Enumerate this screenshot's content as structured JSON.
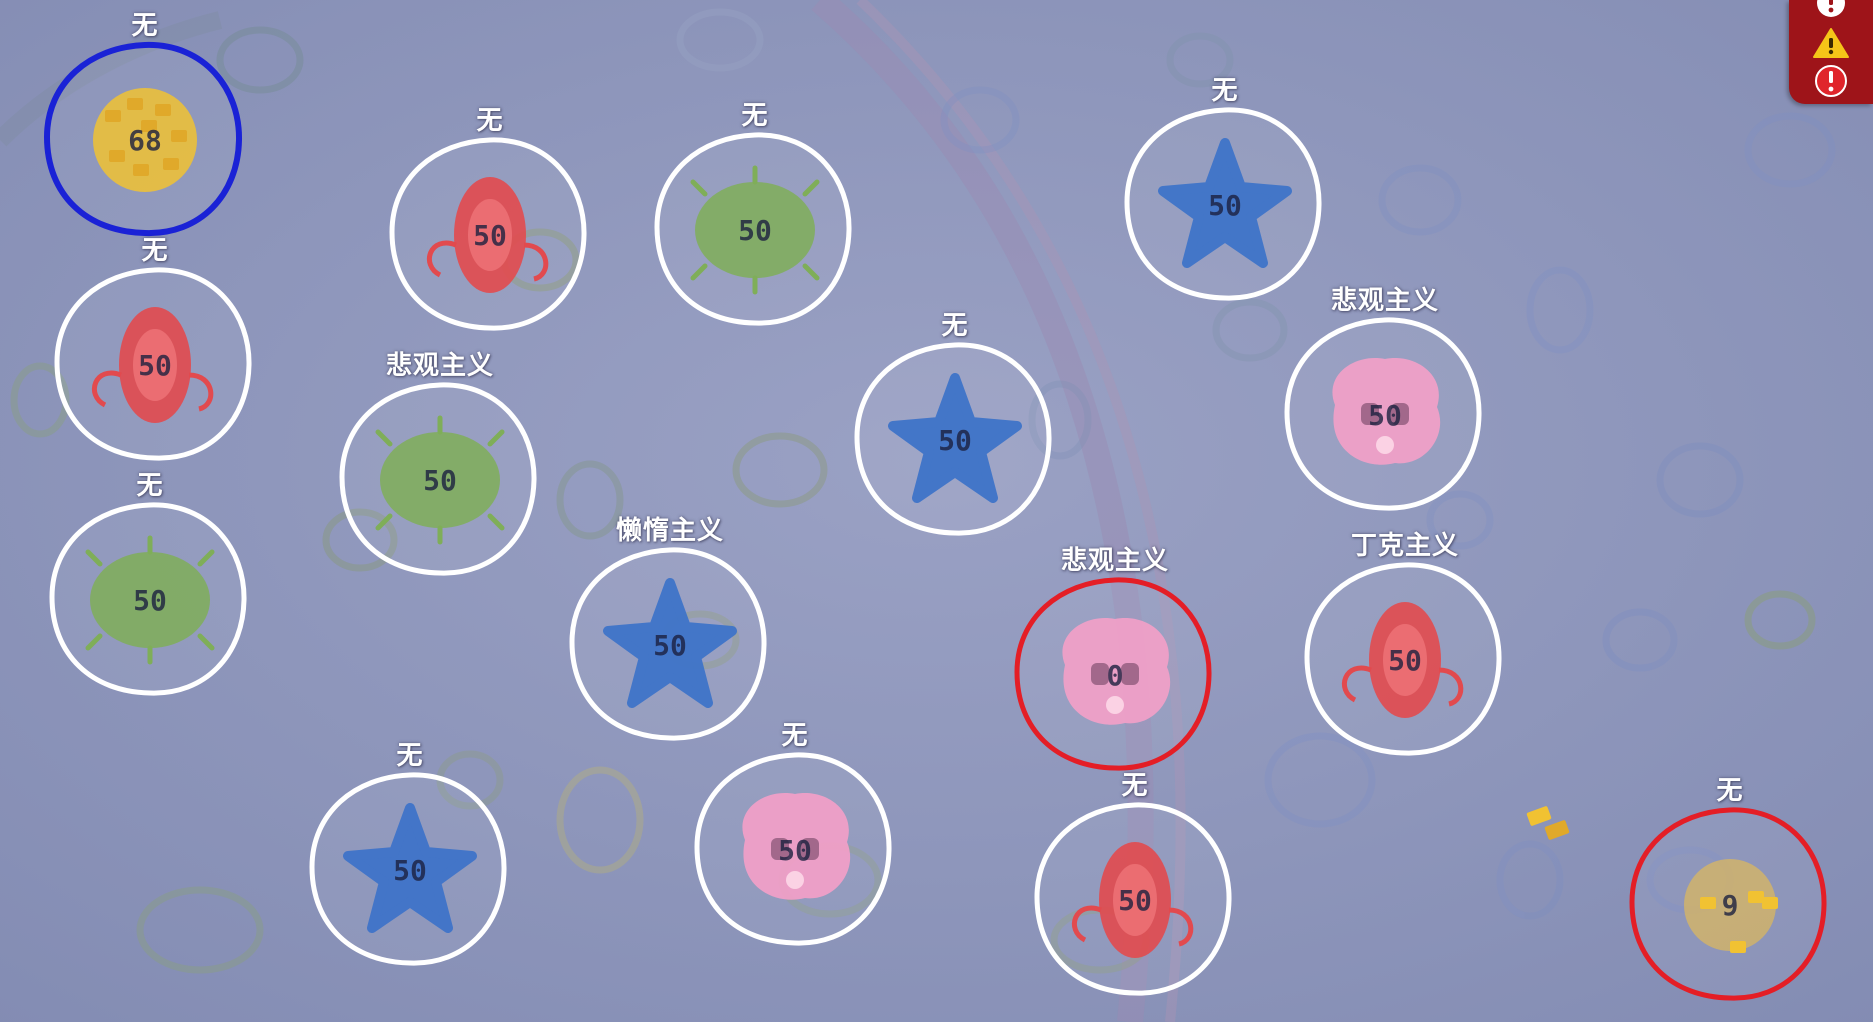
{
  "scene": {
    "background_color": "#8f97b9"
  },
  "cells": [
    {
      "label": "无",
      "count": "68",
      "species": "yellow-spiky",
      "ring": "blue",
      "selected": true
    },
    {
      "label": "无",
      "count": "50",
      "species": "red-fuzzy",
      "ring": "white"
    },
    {
      "label": "无",
      "count": "50",
      "species": "green-blob",
      "ring": "white"
    },
    {
      "label": "无",
      "count": "50",
      "species": "blue-star",
      "ring": "white"
    },
    {
      "label": "无",
      "count": "50",
      "species": "red-fuzzy",
      "ring": "white"
    },
    {
      "label": "悲观主义",
      "count": "50",
      "species": "green-blob",
      "ring": "white"
    },
    {
      "label": "无",
      "count": "50",
      "species": "blue-star",
      "ring": "white"
    },
    {
      "label": "悲观主义",
      "count": "50",
      "species": "pink-puff",
      "ring": "white"
    },
    {
      "label": "无",
      "count": "50",
      "species": "green-blob",
      "ring": "white"
    },
    {
      "label": "懒惰主义",
      "count": "50",
      "species": "blue-star",
      "ring": "white"
    },
    {
      "label": "悲观主义",
      "count": "0",
      "species": "pink-puff",
      "ring": "red"
    },
    {
      "label": "丁克主义",
      "count": "50",
      "species": "red-fuzzy",
      "ring": "white"
    },
    {
      "label": "无",
      "count": "50",
      "species": "blue-star",
      "ring": "white"
    },
    {
      "label": "无",
      "count": "50",
      "species": "pink-puff",
      "ring": "white"
    },
    {
      "label": "无",
      "count": "50",
      "species": "red-fuzzy",
      "ring": "white"
    },
    {
      "label": "无",
      "count": "9",
      "species": "yellow-spiky",
      "ring": "red"
    }
  ],
  "alerts": [
    {
      "icon": "info-icon",
      "color": "#ffffff"
    },
    {
      "icon": "warning-icon",
      "color": "#f5c518"
    },
    {
      "icon": "error-icon",
      "color": "#e0252b"
    }
  ],
  "colors": {
    "ring_white": "#ffffff",
    "ring_blue": "#1a22d6",
    "ring_red": "#e41e26",
    "yellow": "#f1c232",
    "red": "#e24a4e",
    "green": "#7fae58",
    "blue": "#3f74c9",
    "pink": "#f2a0c8"
  }
}
